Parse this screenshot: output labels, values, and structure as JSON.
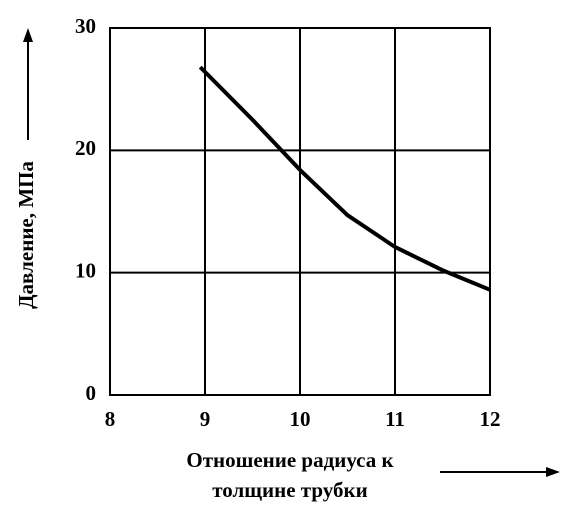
{
  "chart_data": {
    "type": "line",
    "xlabel": [
      "Отношение радиуса к",
      "толщине трубки"
    ],
    "ylabel": "Давление, МПа",
    "x": [
      8.95,
      9.5,
      10,
      10.5,
      11,
      11.5,
      12
    ],
    "series": [
      {
        "color": "#000000",
        "values": [
          26.8,
          22.5,
          18.4,
          14.7,
          12.1,
          10.2,
          8.6
        ]
      }
    ],
    "xlim": [
      8,
      12
    ],
    "xticks": [
      8,
      9,
      10,
      11,
      12
    ],
    "ylim": [
      0,
      30
    ],
    "yticks": [
      0,
      10,
      20,
      30
    ],
    "grid": true
  }
}
